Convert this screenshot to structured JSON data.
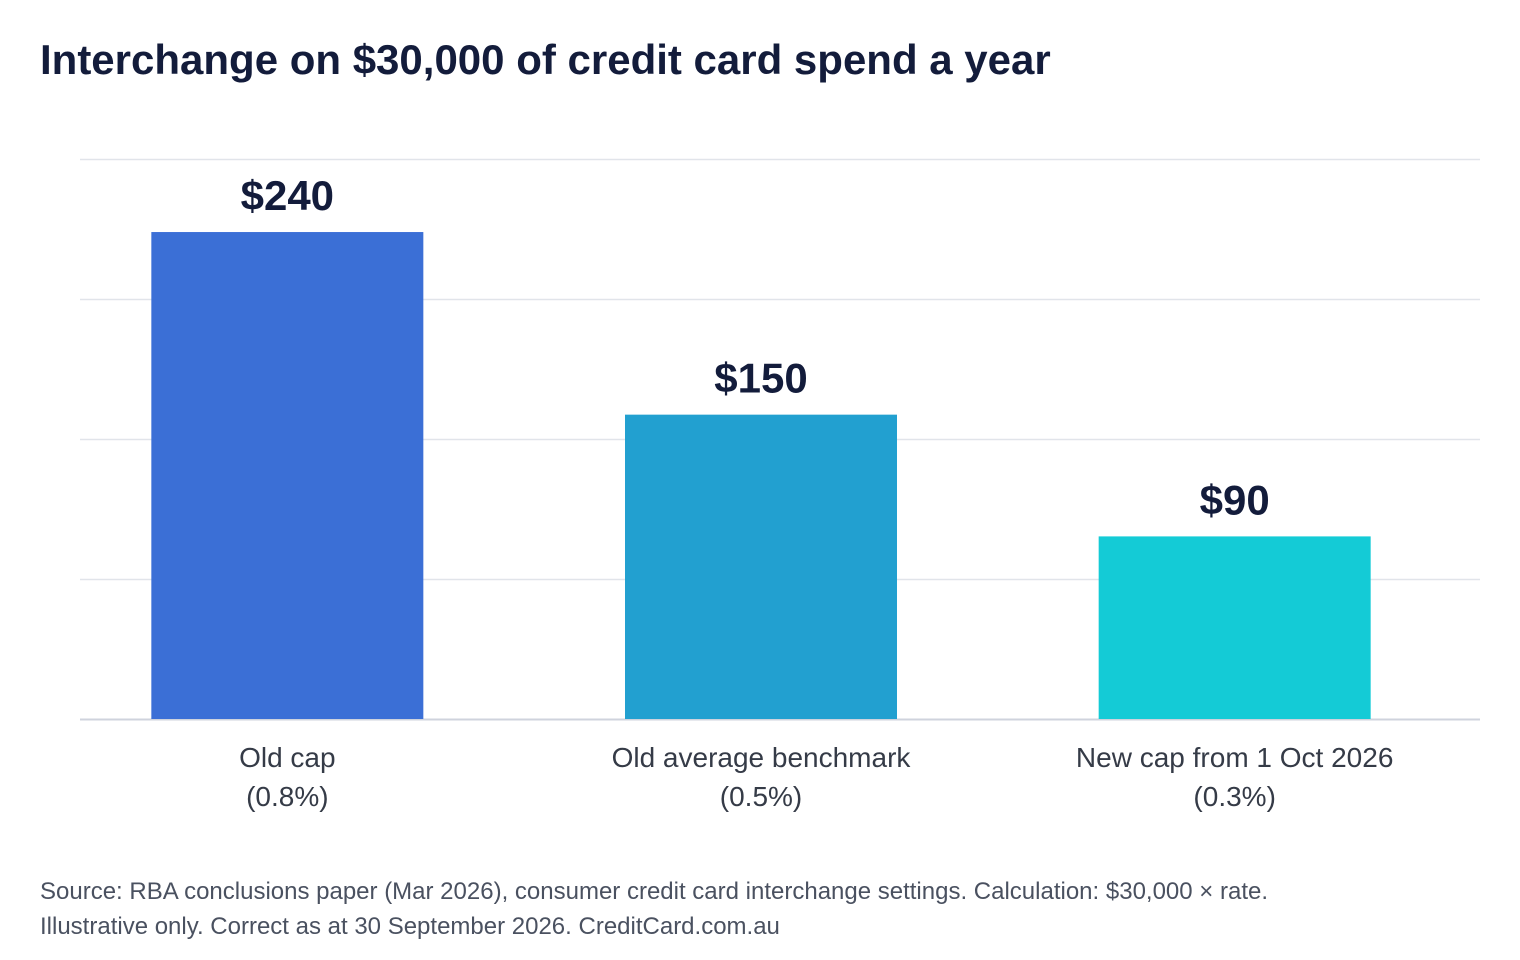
{
  "chart_data": {
    "type": "bar",
    "title": "Interchange on $30,000 of credit card spend a year",
    "categories": [
      [
        "Old cap",
        "(0.8%)"
      ],
      [
        "Old average benchmark",
        "(0.5%)"
      ],
      [
        "New cap from 1 Oct 2026",
        "(0.3%)"
      ]
    ],
    "values": [
      240,
      150,
      90
    ],
    "data_labels": [
      "$240",
      "$150",
      "$90"
    ],
    "colors": [
      "#3b6fd6",
      "#22a0d0",
      "#14cbd6"
    ],
    "ylim": [
      0,
      276
    ],
    "gridlines": [
      0,
      69,
      138,
      207,
      276
    ],
    "grid": true,
    "legend": "none"
  },
  "footnote": {
    "line1": "Source: RBA conclusions paper (Mar 2026), consumer credit card interchange settings. Calculation: $30,000 × rate.",
    "line2": "Illustrative only. Correct as at 30 September 2026. CreditCard.com.au"
  }
}
